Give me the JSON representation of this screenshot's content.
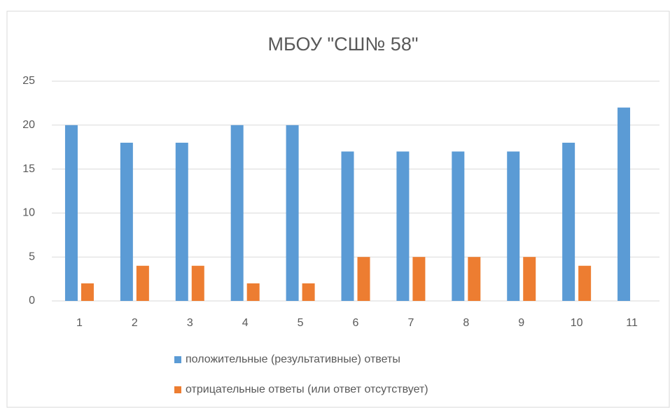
{
  "chart_data": {
    "type": "bar",
    "title": "МБОУ \"СШ№ 58\"",
    "categories": [
      "1",
      "2",
      "3",
      "4",
      "5",
      "6",
      "7",
      "8",
      "9",
      "10",
      "11"
    ],
    "series": [
      {
        "name": "положительные (результативные) ответы",
        "color": "#5b9bd5",
        "values": [
          20,
          18,
          18,
          20,
          20,
          17,
          17,
          17,
          17,
          18,
          22
        ]
      },
      {
        "name": "отрицательные ответы (или ответ отсутствует)",
        "color": "#ed7d31",
        "values": [
          2,
          4,
          4,
          2,
          2,
          5,
          5,
          5,
          5,
          4,
          0
        ]
      }
    ],
    "ylim": [
      0,
      25
    ],
    "yticks": [
      0,
      5,
      10,
      15,
      20,
      25
    ],
    "grid": true,
    "legend": "bottom"
  }
}
